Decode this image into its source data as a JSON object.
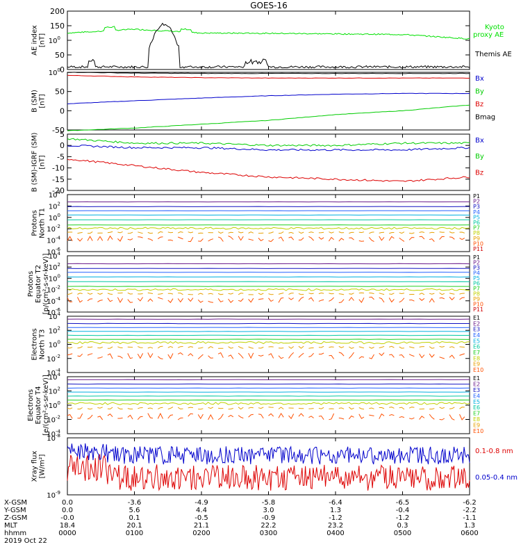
{
  "title": "GOES-16",
  "panels": [
    {
      "id": "ae",
      "ylabel": [
        "AE index",
        "[nT]"
      ],
      "yticks": [
        "0",
        "50",
        "100",
        "150",
        "200"
      ],
      "legend": [
        {
          "text": "Kyoto",
          "color": "#00e000"
        },
        {
          "text": "proxy AE",
          "color": "#00e000"
        },
        {
          "text": "Themis AE",
          "color": "#000000"
        }
      ]
    },
    {
      "id": "bsm",
      "ylabel": [
        "B (SM)",
        "[nT]"
      ],
      "yticks": [
        "-50",
        "0",
        "50",
        "100"
      ],
      "legend": [
        {
          "text": "Bx",
          "color": "#0000cc"
        },
        {
          "text": "By",
          "color": "#00cc00"
        },
        {
          "text": "Bz",
          "color": "#dd0000"
        },
        {
          "text": "Bmag",
          "color": "#000000"
        }
      ]
    },
    {
      "id": "bigrf",
      "ylabel": [
        "B (SM)-IGRF (SM)",
        "[nT]"
      ],
      "yticks": [
        "-20",
        "-15",
        "-10",
        "-5",
        "0",
        "5"
      ],
      "legend": [
        {
          "text": "Bx",
          "color": "#0000cc"
        },
        {
          "text": "By",
          "color": "#00cc00"
        },
        {
          "text": "Bz",
          "color": "#dd0000"
        }
      ]
    },
    {
      "id": "pn",
      "ylabel": [
        "Protons",
        "North T1"
      ],
      "yticks": [
        "10-6",
        "10-4",
        "10-2",
        "100",
        "102",
        "104"
      ],
      "legend": [
        "P1",
        "P2",
        "P3",
        "P4",
        "P5",
        "P6",
        "P7",
        "P8",
        "P9",
        "P10",
        "P11"
      ]
    },
    {
      "id": "pe",
      "ylabel": [
        "Protons",
        "Equator T2",
        "[p/(cm²-s-sr-keV)]"
      ],
      "yticks": [
        "10-6",
        "10-4",
        "10-2",
        "100",
        "102",
        "104"
      ],
      "legend": [
        "P1",
        "P2",
        "P3",
        "P4",
        "P5",
        "P6",
        "P7",
        "P8",
        "P9",
        "P10",
        "P11"
      ]
    },
    {
      "id": "en",
      "ylabel": [
        "Electrons",
        "North T3"
      ],
      "yticks": [
        "10-4",
        "10-2",
        "100",
        "102",
        "104"
      ],
      "legend": [
        "E1",
        "E2",
        "E3",
        "E4",
        "E5",
        "E6",
        "E7",
        "E8",
        "E9",
        "E10"
      ]
    },
    {
      "id": "ee",
      "ylabel": [
        "Electrons",
        "Equator T4",
        "[e/(cm²-s-sr-keV)]"
      ],
      "yticks": [
        "10-4",
        "10-2",
        "100",
        "102",
        "104"
      ],
      "legend": [
        "E1",
        "E2",
        "E3",
        "E4",
        "E5",
        "E6",
        "E7",
        "E8",
        "E9",
        "E10"
      ]
    },
    {
      "id": "xray",
      "ylabel": [
        "Xray flux",
        "[W/m²]"
      ],
      "yticks": [
        "10-9",
        "10-8"
      ],
      "legend": [
        {
          "text": "0.1-0.8 nm",
          "color": "#dd0000"
        },
        {
          "text": "0.05-0.4 nm",
          "color": "#0000cc"
        }
      ]
    }
  ],
  "channel_colors": [
    "#000000",
    "#6a1b8a",
    "#1010c0",
    "#2060ff",
    "#00b0e0",
    "#00c8a0",
    "#20d020",
    "#c0d000",
    "#e8a000",
    "#ff5000",
    "#d00000"
  ],
  "orbit_table": {
    "labels": [
      "X-GSM",
      "Y-GSM",
      "Z-GSM",
      "MLT",
      "hhmm",
      "2019 Oct 22"
    ],
    "columns": [
      [
        "0.0",
        "0.0",
        "-0.0",
        "18.4",
        "0000"
      ],
      [
        "-3.6",
        "5.6",
        "0.1",
        "20.1",
        "0100"
      ],
      [
        "-4.9",
        "4.4",
        "-0.5",
        "21.1",
        "0200"
      ],
      [
        "-5.8",
        "3.0",
        "-0.9",
        "22.2",
        "0300"
      ],
      [
        "-6.4",
        "1.3",
        "-1.2",
        "23.2",
        "0400"
      ],
      [
        "-6.5",
        "-0.4",
        "-1.2",
        "0.3",
        "0500"
      ],
      [
        "-6.2",
        "-2.2",
        "-1.1",
        "1.3",
        "0600"
      ]
    ]
  },
  "chart_data": [
    {
      "type": "line",
      "title": "GOES-16",
      "xlabel": "hhmm",
      "ylabel": "AE index [nT]",
      "x": [
        "0000",
        "0100",
        "0200",
        "0300",
        "0400",
        "0500",
        "0600"
      ],
      "ylim": [
        0,
        200
      ],
      "series": [
        {
          "name": "Kyoto proxy AE",
          "values": [
            125,
            138,
            125,
            124,
            122,
            120,
            105
          ]
        },
        {
          "name": "Themis AE",
          "values": [
            5,
            150,
            3,
            8,
            10,
            5,
            8
          ]
        }
      ]
    },
    {
      "type": "line",
      "ylabel": "B (SM) [nT]",
      "x": [
        "0000",
        "0100",
        "0200",
        "0300",
        "0400",
        "0500",
        "0600"
      ],
      "ylim": [
        -50,
        100
      ],
      "series": [
        {
          "name": "Bx",
          "values": [
            18,
            26,
            33,
            39,
            43,
            45,
            45
          ]
        },
        {
          "name": "By",
          "values": [
            -52,
            -45,
            -35,
            -25,
            -10,
            0,
            15
          ]
        },
        {
          "name": "Bz",
          "values": [
            92,
            88,
            86,
            85,
            85,
            85,
            85
          ]
        },
        {
          "name": "Bmag",
          "values": [
            100,
            98,
            97,
            97,
            97,
            97,
            97
          ]
        }
      ]
    },
    {
      "type": "line",
      "ylabel": "B (SM)-IGRF (SM) [nT]",
      "x": [
        "0000",
        "0100",
        "0200",
        "0300",
        "0400",
        "0500",
        "0600"
      ],
      "ylim": [
        -20,
        5
      ],
      "series": [
        {
          "name": "Bx",
          "values": [
            0,
            -1,
            -1,
            -2,
            -2,
            -2,
            -1
          ]
        },
        {
          "name": "By",
          "values": [
            3,
            1,
            1,
            0,
            0,
            1,
            1
          ]
        },
        {
          "name": "Bz",
          "values": [
            -6,
            -9,
            -12,
            -14,
            -15,
            -16,
            -14
          ]
        }
      ]
    },
    {
      "type": "line",
      "ylabel": "Protons North T1",
      "x": [
        "0000",
        "0600"
      ],
      "ylim": [
        "1e-6",
        "1e4"
      ],
      "series": [
        {
          "name": "P1",
          "values": [
            3000,
            3000
          ]
        },
        {
          "name": "P2",
          "values": [
            300,
            300
          ]
        },
        {
          "name": "P3",
          "values": [
            40,
            40
          ]
        },
        {
          "name": "P4",
          "values": [
            5,
            5
          ]
        },
        {
          "name": "P5",
          "values": [
            0.5,
            0.5
          ]
        },
        {
          "name": "P6",
          "values": [
            0.04,
            0.04
          ]
        },
        {
          "name": "P7",
          "values": [
            0.008,
            0.008
          ]
        },
        {
          "name": "P8",
          "values": [
            0.001,
            0.001
          ]
        },
        {
          "name": "P9",
          "values": [
            5e-05,
            5e-05
          ]
        }
      ]
    },
    {
      "type": "line",
      "ylabel": "Protons Equator T2 [p/(cm2-s-sr-keV)]",
      "x": [
        "0000",
        "0600"
      ],
      "ylim": [
        "1e-6",
        "1e4"
      ],
      "series": [
        {
          "name": "P1",
          "values": [
            2000,
            2000
          ]
        },
        {
          "name": "P2",
          "values": [
            200,
            200
          ]
        },
        {
          "name": "P3",
          "values": [
            30,
            30
          ]
        },
        {
          "name": "P4",
          "values": [
            3,
            3
          ]
        },
        {
          "name": "P5",
          "values": [
            0.3,
            0.3
          ]
        },
        {
          "name": "P6",
          "values": [
            0.03,
            0.03
          ]
        },
        {
          "name": "P7",
          "values": [
            0.006,
            0.006
          ]
        },
        {
          "name": "P8",
          "values": [
            0.0008,
            0.0008
          ]
        },
        {
          "name": "P9",
          "values": [
            4e-05,
            4e-05
          ]
        }
      ]
    },
    {
      "type": "line",
      "ylabel": "Electrons North T3",
      "x": [
        "0000",
        "0600"
      ],
      "ylim": [
        "1e-4",
        "1e5"
      ],
      "series": [
        {
          "name": "E1",
          "values": [
            30000,
            30000
          ]
        },
        {
          "name": "E2",
          "values": [
            5000,
            5000
          ]
        },
        {
          "name": "E3",
          "values": [
            1000,
            1000
          ]
        },
        {
          "name": "E4",
          "values": [
            200,
            200
          ]
        },
        {
          "name": "E5",
          "values": [
            40,
            40
          ]
        },
        {
          "name": "E6",
          "values": [
            8,
            8
          ]
        },
        {
          "name": "E7",
          "values": [
            2,
            2
          ]
        },
        {
          "name": "E8",
          "values": [
            0.3,
            0.3
          ]
        },
        {
          "name": "E9",
          "values": [
            0.01,
            0.01
          ]
        }
      ]
    },
    {
      "type": "line",
      "ylabel": "Electrons Equator T4 [e/(cm2-s-sr-keV)]",
      "x": [
        "0000",
        "0600"
      ],
      "ylim": [
        "1e-4",
        "1e5"
      ],
      "series": [
        {
          "name": "E1",
          "values": [
            30000,
            30000
          ]
        },
        {
          "name": "E2",
          "values": [
            5000,
            5000
          ]
        },
        {
          "name": "E3",
          "values": [
            1000,
            1000
          ]
        },
        {
          "name": "E4",
          "values": [
            200,
            200
          ]
        },
        {
          "name": "E5",
          "values": [
            40,
            40
          ]
        },
        {
          "name": "E6",
          "values": [
            8,
            8
          ]
        },
        {
          "name": "E7",
          "values": [
            2,
            2
          ]
        },
        {
          "name": "E8",
          "values": [
            0.3,
            0.3
          ]
        },
        {
          "name": "E9",
          "values": [
            0.01,
            0.01
          ]
        }
      ]
    },
    {
      "type": "line",
      "ylabel": "Xray flux [W/m2]",
      "x": [
        "0000",
        "0600"
      ],
      "ylim": [
        "1e-9",
        "1e-8"
      ],
      "series": [
        {
          "name": "0.1-0.8 nm",
          "values": [
            "3e-9",
            "2e-9"
          ]
        },
        {
          "name": "0.05-0.4 nm",
          "values": [
            "6e-9",
            "5e-9"
          ]
        }
      ]
    }
  ]
}
